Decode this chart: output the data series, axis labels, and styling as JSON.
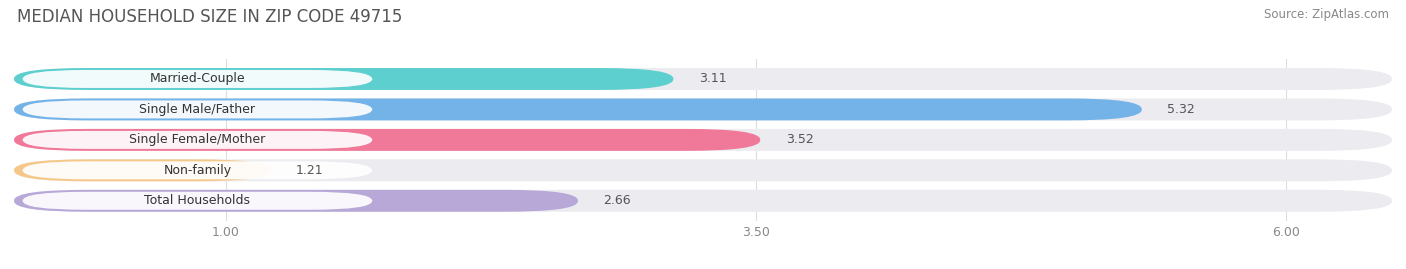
{
  "title": "MEDIAN HOUSEHOLD SIZE IN ZIP CODE 49715",
  "source": "Source: ZipAtlas.com",
  "categories": [
    "Married-Couple",
    "Single Male/Father",
    "Single Female/Mother",
    "Non-family",
    "Total Households"
  ],
  "values": [
    3.11,
    5.32,
    3.52,
    1.21,
    2.66
  ],
  "bar_colors": [
    "#5ecfcf",
    "#74b3e8",
    "#f07898",
    "#f5c88a",
    "#b8a8d8"
  ],
  "background_color": "#ffffff",
  "bar_bg_color": "#ebebf0",
  "xmin": 0.0,
  "xmax": 6.5,
  "xticks": [
    1.0,
    3.5,
    6.0
  ],
  "xtick_labels": [
    "1.00",
    "3.50",
    "6.00"
  ],
  "title_fontsize": 12,
  "label_fontsize": 9,
  "value_fontsize": 9,
  "source_fontsize": 8.5
}
